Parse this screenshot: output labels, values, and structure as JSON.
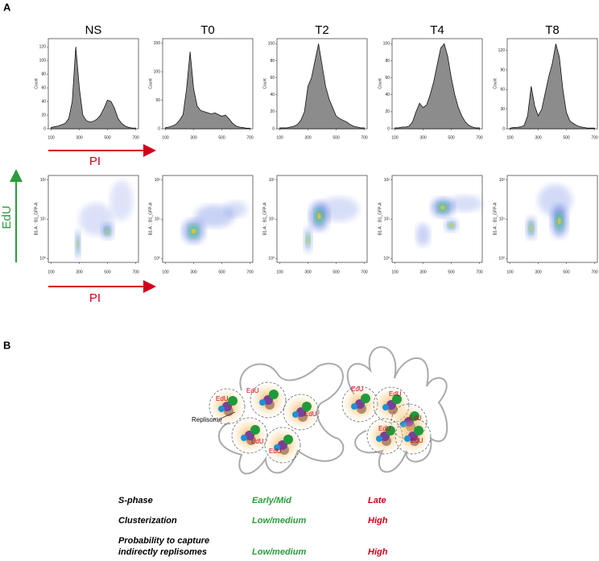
{
  "panel_a": {
    "label": "A",
    "pi_label": "PI",
    "edu_label": "EdU",
    "pi_label_2": "PI",
    "hist_x": [
      100,
      125,
      150,
      175,
      200,
      225,
      250,
      275,
      300,
      325,
      350,
      375,
      400,
      425,
      450,
      475,
      500,
      525,
      550,
      575,
      600,
      625,
      650,
      675,
      700
    ],
    "xlim": [
      80,
      720
    ],
    "xticks": [
      100,
      300,
      500,
      700
    ],
    "hist_ylabel": "Count",
    "scatter_ylabel": "B1-A :: B1_GFP-A",
    "scatter_log": true,
    "scatter_ylim": [
      0.8,
      130
    ],
    "scatter_yticks": [
      {
        "value": 1,
        "label": "10⁰"
      },
      {
        "value": 10,
        "label": "10¹"
      },
      {
        "value": 100,
        "label": "10²"
      }
    ],
    "hist_color": "#8c8c8c",
    "samples": [
      {
        "name": "NS",
        "ylim": [
          0,
          132
        ],
        "yticks": [
          0,
          20,
          40,
          60,
          80,
          100,
          120
        ],
        "values": [
          2,
          3,
          4,
          6,
          8,
          15,
          40,
          120,
          60,
          20,
          12,
          10,
          11,
          14,
          20,
          30,
          42,
          40,
          30,
          15,
          8,
          4,
          2,
          1,
          1
        ]
      },
      {
        "name": "T0",
        "ylim": [
          0,
          158
        ],
        "yticks": [
          0,
          50,
          100,
          150
        ],
        "values": [
          2,
          3,
          5,
          8,
          15,
          25,
          70,
          135,
          70,
          40,
          32,
          30,
          28,
          26,
          28,
          25,
          22,
          24,
          18,
          10,
          5,
          3,
          2,
          1,
          1
        ]
      },
      {
        "name": "T2",
        "ylim": [
          0,
          106
        ],
        "yticks": [
          0,
          20,
          40,
          60,
          80,
          100
        ],
        "values": [
          1,
          1,
          1,
          2,
          3,
          5,
          10,
          20,
          50,
          60,
          80,
          100,
          75,
          50,
          35,
          25,
          15,
          12,
          10,
          8,
          5,
          3,
          2,
          1,
          1
        ]
      },
      {
        "name": "T4",
        "ylim": [
          0,
          106
        ],
        "yticks": [
          0,
          20,
          40,
          60,
          80,
          100
        ],
        "values": [
          1,
          1,
          2,
          2,
          3,
          8,
          20,
          30,
          25,
          28,
          40,
          55,
          75,
          95,
          100,
          85,
          60,
          40,
          25,
          15,
          8,
          4,
          2,
          1,
          1
        ]
      },
      {
        "name": "T8",
        "ylim": [
          0,
          138
        ],
        "yticks": [
          0,
          30,
          60,
          90,
          120
        ],
        "values": [
          1,
          2,
          2,
          3,
          5,
          20,
          65,
          35,
          20,
          30,
          55,
          80,
          100,
          130,
          110,
          60,
          25,
          12,
          8,
          5,
          3,
          2,
          1,
          1,
          1
        ]
      }
    ]
  },
  "panel_b": {
    "label": "B",
    "replisome_label": "Replisome",
    "edu_labels": [
      "EdU",
      "EdU",
      "EdU",
      "EdU",
      "EdU",
      "EdU",
      "EdU",
      "EdU",
      "EdU",
      "EdU"
    ],
    "table": {
      "rows": [
        [
          "S-phase",
          "Early/Mid",
          "Late"
        ],
        [
          "Clusterization",
          "Low/medium",
          "High"
        ],
        [
          [
            "Probability to capture",
            "indirectly replisomes"
          ],
          "Low/medium",
          "High"
        ]
      ]
    }
  }
}
